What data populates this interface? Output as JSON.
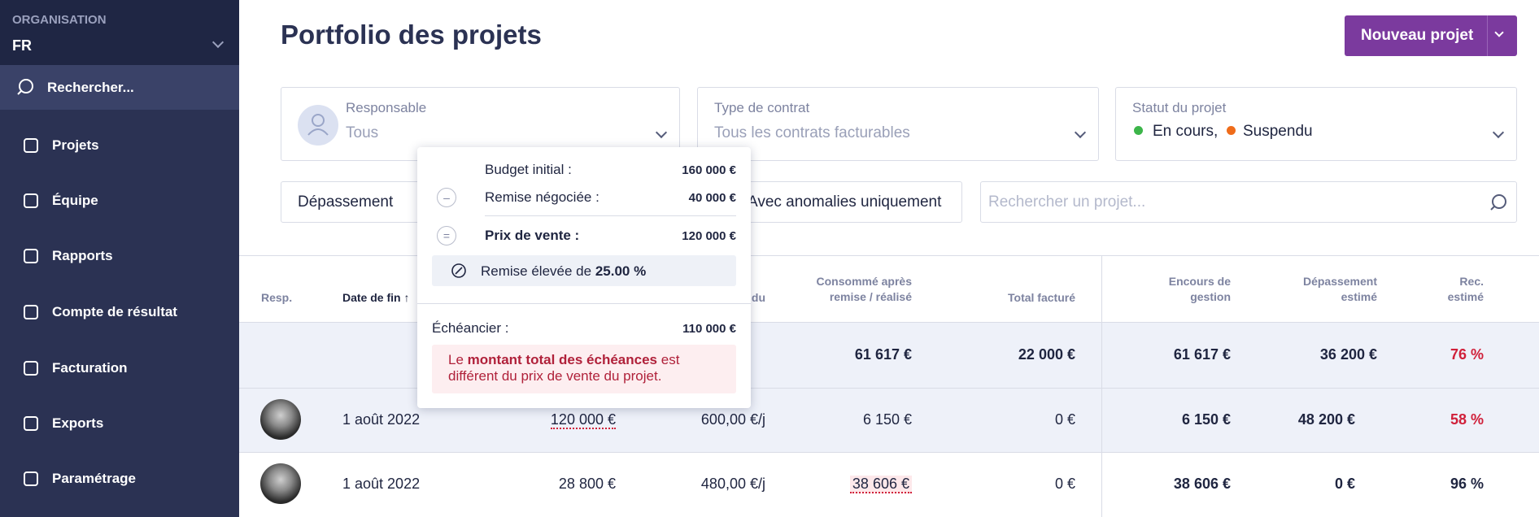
{
  "sidebar": {
    "org_label": "ORGANISATION",
    "org": "FR",
    "search": "Rechercher...",
    "nav": [
      "Projets",
      "Équipe",
      "Rapports",
      "Compte de résultat",
      "Facturation",
      "Exports",
      "Paramétrage"
    ]
  },
  "header": {
    "title": "Portfolio des projets",
    "button": "Nouveau projet"
  },
  "filters": {
    "responsable": {
      "label": "Responsable",
      "value": "Tous"
    },
    "contrat": {
      "label": "Type de contrat",
      "value": "Tous les contrats facturables"
    },
    "statut": {
      "label": "Statut du projet",
      "values": [
        "En cours,",
        "Suspendu"
      ]
    },
    "depassement": "Dépassement",
    "anomalies": "Avec anomalies uniquement",
    "search": "Rechercher un projet..."
  },
  "table": {
    "headers": [
      "Resp.",
      "Date de fin",
      "du",
      "Consommé après",
      "remise / réalisé",
      "Total facturé",
      "Encours de",
      "gestion",
      "Dépassement",
      "estimé",
      "Rec.",
      "estimé"
    ],
    "totals": [
      "61 617 €",
      "22 000 €",
      "61 617 €",
      "36 200 €",
      "76 %"
    ],
    "rows": [
      [
        "1 août 2022",
        "120 000 €",
        "600,00 €/j",
        "6 150 €",
        "0 €",
        "6 150 €",
        "48 200 €",
        "58 %"
      ],
      [
        "1 août 2022",
        "28 800 €",
        "480,00 €/j",
        "38 606 €",
        "0 €",
        "38 606 €",
        "0 €",
        "96 %"
      ]
    ]
  },
  "popup": {
    "budget_label": "Budget initial :",
    "budget": "160 000 €",
    "remise_label": "Remise négociée :",
    "remise": "40 000 €",
    "prix_label": "Prix de vente :",
    "prix": "120 000 €",
    "alert_text": "Remise élevée de",
    "alert_value": "25.00 %",
    "echeancier_label": "Échéancier :",
    "echeancier": "110 000 €",
    "warning": [
      "Le",
      "montant total des échéances",
      "est différent du prix de vente du projet."
    ]
  }
}
